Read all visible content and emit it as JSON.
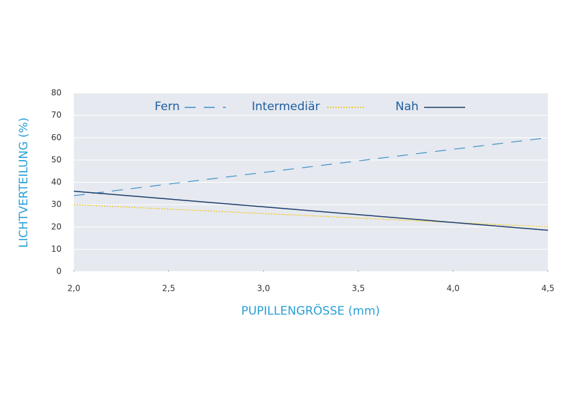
{
  "chart_data": {
    "type": "line",
    "x_label": "PUPILLENGRÖSSE (mm)",
    "y_label": "LICHTVERTEILUNG (%)",
    "x": [
      2.0,
      4.5
    ],
    "series": [
      {
        "name": "Fern",
        "color": "#3a8fc8",
        "style": "dashed",
        "values": [
          34,
          60
        ]
      },
      {
        "name": "Intermediär",
        "color": "#f2c200",
        "style": "dotted",
        "values": [
          30,
          20
        ]
      },
      {
        "name": "Nah",
        "color": "#1a3a6a",
        "style": "solid",
        "values": [
          36,
          18.5
        ]
      }
    ],
    "xlim": [
      2.0,
      4.5
    ],
    "xticks": [
      {
        "value": 2.0,
        "label": "2,0"
      },
      {
        "value": 2.5,
        "label": "2,5"
      },
      {
        "value": 3.0,
        "label": "3,0"
      },
      {
        "value": 3.5,
        "label": "3,5"
      },
      {
        "value": 4.0,
        "label": "4,0"
      },
      {
        "value": 4.5,
        "label": "4,5"
      }
    ],
    "ylim": [
      0,
      80
    ],
    "yticks": [
      0,
      10,
      20,
      30,
      40,
      50,
      60,
      70,
      80
    ],
    "grid": true,
    "legend": "top"
  }
}
